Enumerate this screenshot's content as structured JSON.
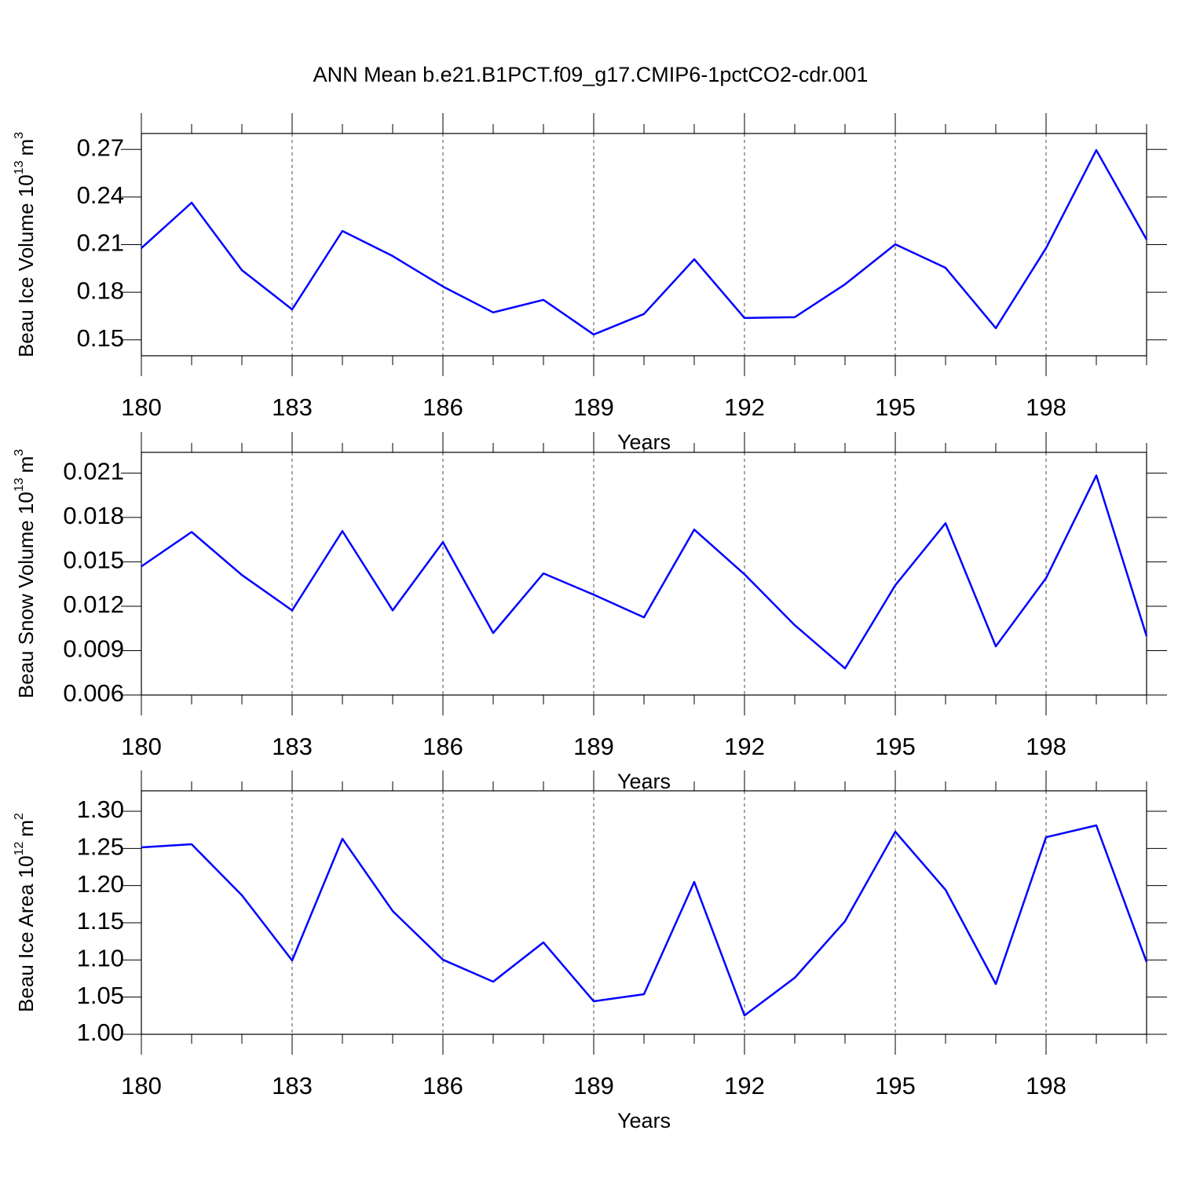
{
  "chart_data": [
    {
      "type": "line",
      "title": "ANN Mean b.e21.B1PCT.f09_g17.CMIP6-1pctCO2-cdr.001",
      "xlabel": "Years",
      "ylabel": {
        "text": "Beau Ice Volume 10",
        "sup": "13",
        "unit": "m",
        "unit_sup": "3"
      },
      "x": [
        180,
        181,
        182,
        183,
        184,
        185,
        186,
        187,
        188,
        189,
        190,
        191,
        192,
        193,
        194,
        195,
        196,
        197,
        198,
        199,
        200
      ],
      "series": [
        {
          "color": "#0000ff",
          "values": [
            0.2078,
            0.2364,
            0.1939,
            0.1692,
            0.2186,
            0.2028,
            0.1836,
            0.1673,
            0.1752,
            0.1534,
            0.1663,
            0.2008,
            0.1638,
            0.1643,
            0.185,
            0.2102,
            0.1954,
            0.1574,
            0.2078,
            0.2695,
            0.2132
          ]
        }
      ],
      "xlim": [
        180,
        200
      ],
      "xticks": [
        180,
        183,
        186,
        189,
        192,
        195,
        198
      ],
      "ylim": [
        0.14,
        0.28
      ],
      "yticks": [
        0.15,
        0.18,
        0.21,
        0.24,
        0.27
      ],
      "grid": true
    },
    {
      "type": "line",
      "xlabel": "Years",
      "ylabel": {
        "text": "Beau Snow Volume 10",
        "sup": "13",
        "unit": "m",
        "unit_sup": "3"
      },
      "x": [
        180,
        181,
        182,
        183,
        184,
        185,
        186,
        187,
        188,
        189,
        190,
        191,
        192,
        193,
        194,
        195,
        196,
        197,
        198,
        199,
        200
      ],
      "series": [
        {
          "color": "#0000ff",
          "values": [
            0.01469,
            0.01702,
            0.01411,
            0.01172,
            0.01708,
            0.01172,
            0.01633,
            0.01019,
            0.01422,
            0.01278,
            0.01125,
            0.01718,
            0.01416,
            0.01072,
            0.0078,
            0.01342,
            0.01761,
            0.00929,
            0.0139,
            0.02084,
            0.00998
          ]
        }
      ],
      "xlim": [
        180,
        200
      ],
      "xticks": [
        180,
        183,
        186,
        189,
        192,
        195,
        198
      ],
      "ylim": [
        0.006,
        0.0224
      ],
      "yticks": [
        0.006,
        0.009,
        0.012,
        0.015,
        0.018,
        0.021
      ],
      "grid": true
    },
    {
      "type": "line",
      "xlabel": "Years",
      "ylabel": {
        "text": "Beau Ice Area 10",
        "sup": "12",
        "unit": "m",
        "unit_sup": "2"
      },
      "x": [
        180,
        181,
        182,
        183,
        184,
        185,
        186,
        187,
        188,
        189,
        190,
        191,
        192,
        193,
        194,
        195,
        196,
        197,
        198,
        199,
        200
      ],
      "series": [
        {
          "color": "#0000ff",
          "values": [
            1.2514,
            1.2556,
            1.187,
            1.0993,
            1.263,
            1.1658,
            1.1003,
            1.0708,
            1.1236,
            1.0444,
            1.0539,
            1.2049,
            1.0253,
            1.076,
            1.1521,
            1.2725,
            1.1943,
            1.0676,
            1.2651,
            1.281,
            1.0972
          ]
        }
      ],
      "xlim": [
        180,
        200
      ],
      "xticks": [
        180,
        183,
        186,
        189,
        192,
        195,
        198
      ],
      "ylim": [
        1.0,
        1.3275
      ],
      "yticks": [
        {
          "value": 1.0,
          "label": "1.00"
        },
        1.05,
        {
          "value": 1.1,
          "label": "1.10"
        },
        1.15,
        {
          "value": 1.2,
          "label": "1.20"
        },
        1.25,
        {
          "value": 1.3,
          "label": "1.30"
        }
      ],
      "grid": true
    }
  ]
}
